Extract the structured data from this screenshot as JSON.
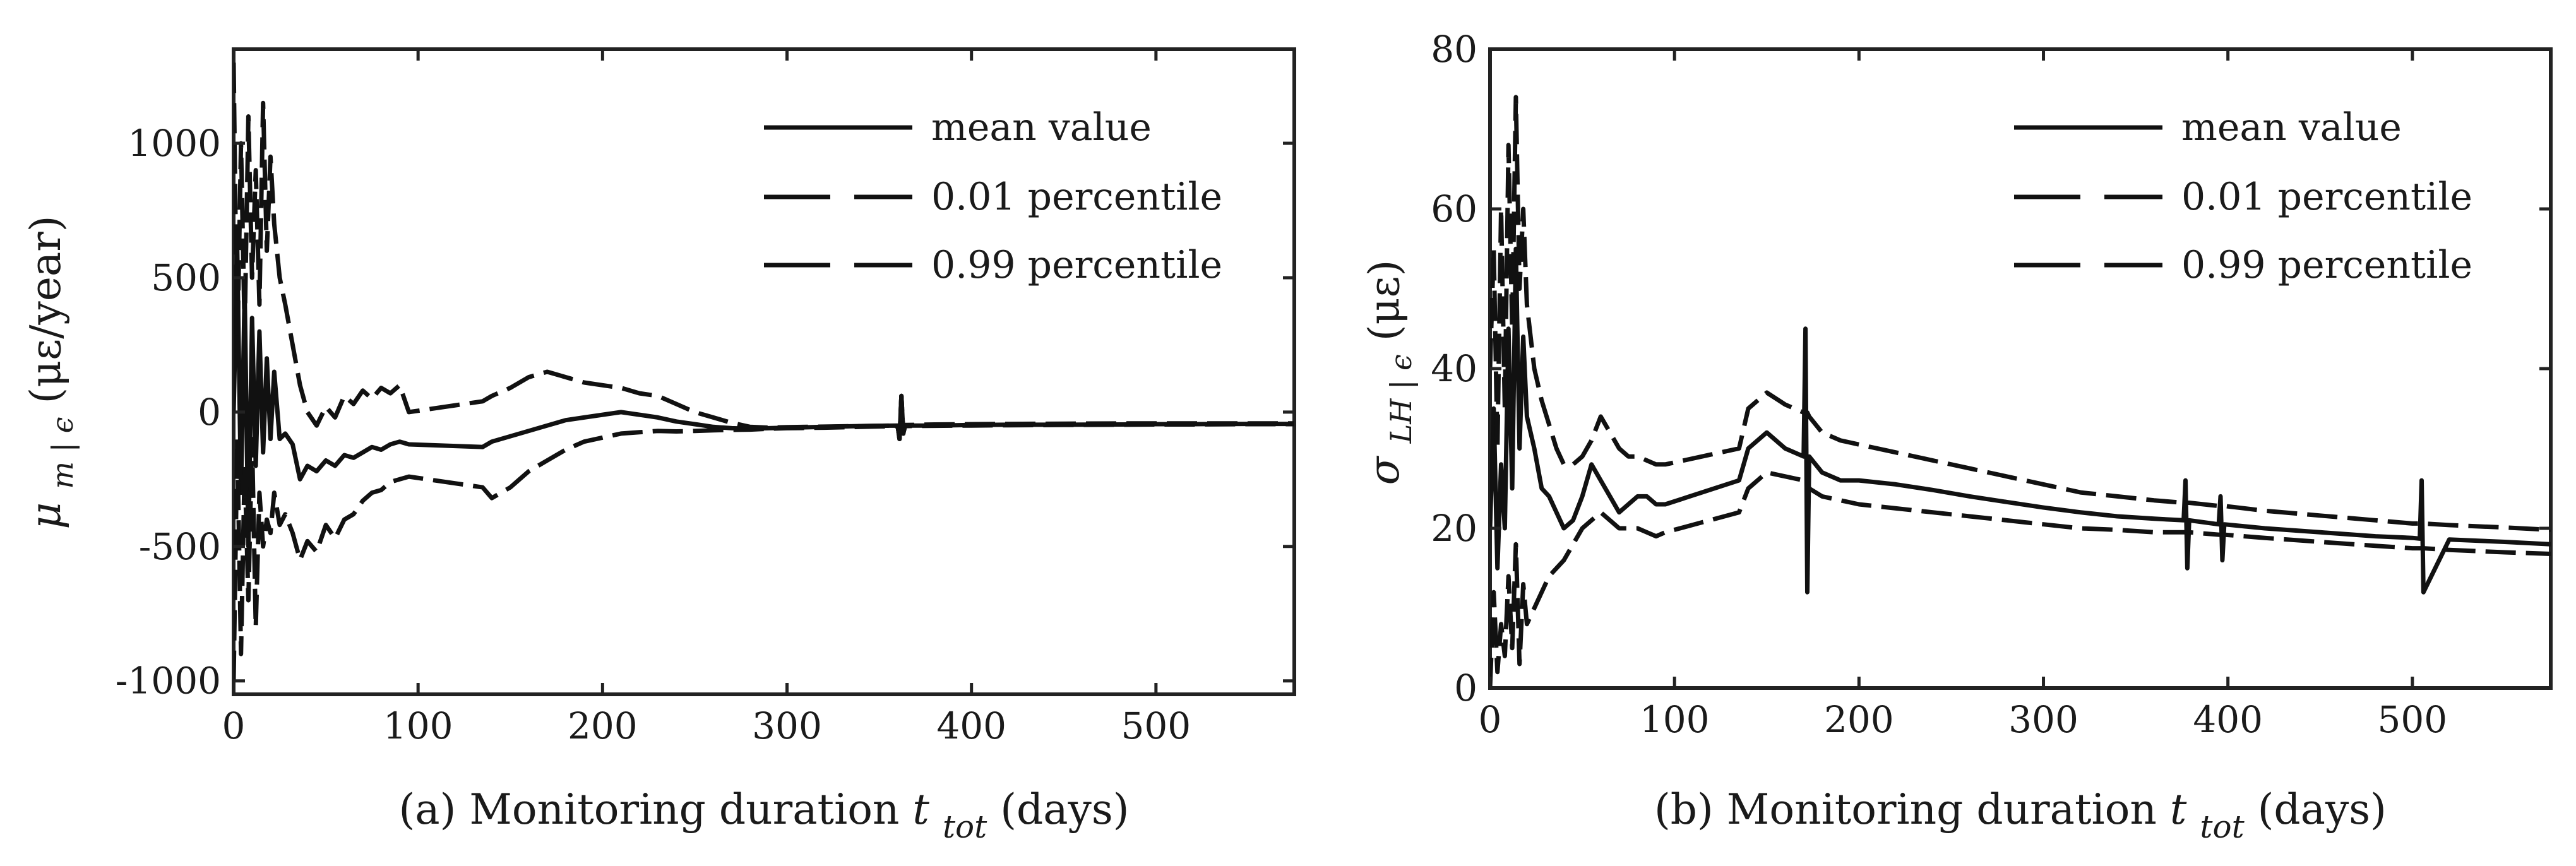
{
  "chart_data": [
    {
      "type": "line",
      "caption": "(a) Monitoring duration",
      "caption_var": "t",
      "caption_sub": "tot",
      "caption_units": "(days)",
      "ylabel_symbol": "μ",
      "ylabel_sub": "m | ϵ",
      "ylabel_units": "(με/year)",
      "xlim": [
        0,
        575
      ],
      "ylim": [
        -1050,
        1350
      ],
      "xticks": [
        0,
        100,
        200,
        300,
        400,
        500
      ],
      "xtick_labels": [
        "0",
        "100",
        "200",
        "300",
        "400",
        "500"
      ],
      "yticks": [
        -1000,
        -500,
        0,
        500,
        1000
      ],
      "ytick_labels": [
        "-1000",
        "-500",
        "0",
        "500",
        "1000"
      ],
      "legend": [
        "mean value",
        "0.01 percentile",
        "0.99 percentile"
      ],
      "series": [
        {
          "name": "mean value",
          "style": "solid",
          "x": [
            0,
            2,
            4,
            6,
            8,
            10,
            12,
            14,
            16,
            18,
            20,
            22,
            25,
            28,
            32,
            36,
            40,
            45,
            50,
            55,
            60,
            65,
            70,
            75,
            80,
            85,
            90,
            95,
            135,
            140,
            150,
            160,
            170,
            180,
            190,
            200,
            210,
            220,
            230,
            240,
            250,
            260,
            270,
            280,
            290,
            300,
            320,
            340,
            360,
            361,
            362,
            363,
            364,
            365,
            380,
            400,
            420,
            450,
            480,
            500,
            520,
            550,
            575
          ],
          "y": [
            0,
            600,
            -300,
            450,
            -500,
            350,
            -200,
            300,
            -150,
            200,
            -100,
            150,
            -100,
            -80,
            -120,
            -250,
            -200,
            -220,
            -180,
            -200,
            -160,
            -170,
            -150,
            -130,
            -140,
            -120,
            -110,
            -120,
            -130,
            -110,
            -90,
            -70,
            -50,
            -30,
            -20,
            -10,
            0,
            -10,
            -20,
            -35,
            -45,
            -55,
            -60,
            -62,
            -60,
            -58,
            -55,
            -52,
            -50,
            -100,
            60,
            -80,
            -50,
            -50,
            -50,
            -48,
            -47,
            -47,
            -46,
            -45,
            -45,
            -44,
            -44
          ]
        },
        {
          "name": "0.01 percentile",
          "style": "dashed",
          "x": [
            0,
            2,
            4,
            6,
            8,
            10,
            12,
            14,
            16,
            18,
            20,
            22,
            25,
            28,
            32,
            36,
            40,
            45,
            50,
            55,
            60,
            65,
            70,
            75,
            80,
            85,
            90,
            95,
            135,
            140,
            150,
            160,
            170,
            180,
            190,
            200,
            210,
            220,
            230,
            240,
            250,
            260,
            270,
            280,
            290,
            300,
            320,
            340,
            360,
            361,
            362,
            363,
            364,
            365,
            380,
            400,
            420,
            450,
            480,
            500,
            520,
            550,
            575
          ],
          "y": [
            -1000,
            -100,
            -900,
            -200,
            -700,
            -100,
            -800,
            -300,
            -500,
            -400,
            -450,
            -300,
            -420,
            -380,
            -450,
            -550,
            -480,
            -520,
            -420,
            -470,
            -400,
            -380,
            -330,
            -300,
            -290,
            -260,
            -250,
            -240,
            -280,
            -320,
            -280,
            -220,
            -180,
            -140,
            -110,
            -95,
            -80,
            -75,
            -70,
            -72,
            -70,
            -68,
            -66,
            -65,
            -62,
            -60,
            -58,
            -55,
            -52,
            -100,
            60,
            -80,
            -52,
            -52,
            -51,
            -50,
            -49,
            -48,
            -47,
            -46,
            -46,
            -45,
            -45
          ]
        },
        {
          "name": "0.99 percentile",
          "style": "dashed",
          "x": [
            0,
            2,
            4,
            6,
            8,
            10,
            12,
            14,
            16,
            18,
            20,
            22,
            25,
            28,
            32,
            36,
            40,
            45,
            50,
            55,
            60,
            65,
            70,
            75,
            80,
            85,
            90,
            95,
            135,
            140,
            150,
            160,
            170,
            180,
            190,
            200,
            210,
            220,
            230,
            240,
            250,
            260,
            270,
            280,
            290,
            300,
            320,
            340,
            360,
            361,
            362,
            363,
            364,
            365,
            380,
            400,
            420,
            450,
            480,
            500,
            520,
            550,
            575
          ],
          "y": [
            1300,
            200,
            1000,
            300,
            1100,
            500,
            900,
            400,
            1150,
            600,
            950,
            700,
            500,
            400,
            250,
            100,
            0,
            -50,
            20,
            -20,
            60,
            30,
            80,
            50,
            90,
            70,
            100,
            0,
            40,
            60,
            90,
            130,
            150,
            130,
            110,
            100,
            90,
            70,
            60,
            30,
            0,
            -20,
            -40,
            -55,
            -58,
            -56,
            -54,
            -52,
            -50,
            -100,
            60,
            -80,
            -48,
            -48,
            -46,
            -45,
            -44,
            -43,
            -42,
            -42,
            -42,
            -42,
            -42
          ]
        }
      ]
    },
    {
      "type": "line",
      "caption": "(b) Monitoring duration",
      "caption_var": "t",
      "caption_sub": "tot",
      "caption_units": "(days)",
      "ylabel_symbol": "σ",
      "ylabel_sub": "LH | ϵ",
      "ylabel_units": "(με)",
      "xlim": [
        0,
        575
      ],
      "ylim": [
        0,
        80
      ],
      "xticks": [
        0,
        100,
        200,
        300,
        400,
        500
      ],
      "xtick_labels": [
        "0",
        "100",
        "200",
        "300",
        "400",
        "500"
      ],
      "yticks": [
        0,
        20,
        40,
        60,
        80
      ],
      "ytick_labels": [
        "0",
        "20",
        "40",
        "60",
        "80"
      ],
      "legend": [
        "mean value",
        "0.01 percentile",
        "0.99 percentile"
      ],
      "series": [
        {
          "name": "mean value",
          "style": "solid",
          "x": [
            0,
            2,
            4,
            6,
            8,
            10,
            12,
            14,
            16,
            18,
            20,
            24,
            28,
            32,
            36,
            40,
            45,
            50,
            55,
            60,
            65,
            70,
            75,
            80,
            85,
            90,
            95,
            135,
            140,
            150,
            160,
            170,
            171,
            172,
            173,
            180,
            190,
            200,
            220,
            240,
            260,
            280,
            300,
            320,
            340,
            360,
            376,
            377,
            378,
            379,
            395,
            396,
            397,
            398,
            420,
            450,
            480,
            500,
            504,
            505,
            506,
            520,
            550,
            575
          ],
          "y": [
            20,
            35,
            15,
            28,
            20,
            45,
            25,
            55,
            30,
            44,
            34,
            30,
            25,
            24,
            22,
            20,
            21,
            24,
            28,
            26,
            24,
            22,
            23,
            24,
            24,
            23,
            23,
            26,
            30,
            32,
            30,
            29,
            45,
            12,
            29,
            27,
            26,
            26,
            25.5,
            24.8,
            24,
            23.3,
            22.6,
            22,
            21.5,
            21.2,
            21,
            26,
            15,
            21,
            20.5,
            24,
            16,
            20.5,
            20,
            19.5,
            19,
            18.8,
            18.7,
            26,
            12,
            18.6,
            18.3,
            18
          ]
        },
        {
          "name": "0.01 percentile",
          "style": "dashed",
          "x": [
            0,
            2,
            4,
            6,
            8,
            10,
            12,
            14,
            16,
            18,
            20,
            24,
            28,
            32,
            36,
            40,
            45,
            50,
            55,
            60,
            65,
            70,
            75,
            80,
            85,
            90,
            95,
            135,
            140,
            150,
            160,
            170,
            171,
            172,
            173,
            180,
            190,
            200,
            220,
            240,
            260,
            280,
            300,
            320,
            340,
            360,
            376,
            377,
            378,
            379,
            395,
            396,
            397,
            398,
            420,
            450,
            480,
            500,
            504,
            505,
            506,
            520,
            550,
            575
          ],
          "y": [
            0,
            12,
            2,
            8,
            4,
            14,
            5,
            18,
            3,
            13,
            8,
            10,
            12,
            14,
            15,
            16,
            18,
            20,
            21,
            22,
            21,
            20,
            20,
            20,
            19.5,
            19,
            19.5,
            22,
            25,
            27,
            26.5,
            26,
            26,
            26,
            25,
            24,
            23.5,
            23,
            22.5,
            22,
            21.5,
            21,
            20.5,
            20,
            19.8,
            19.5,
            19.5,
            19.5,
            19.5,
            19.5,
            19.2,
            19.2,
            19.2,
            19.2,
            18.8,
            18.3,
            17.8,
            17.5,
            17.5,
            17.5,
            17.5,
            17.3,
            17,
            16.8
          ]
        },
        {
          "name": "0.99 percentile",
          "style": "dashed",
          "x": [
            0,
            2,
            4,
            6,
            8,
            10,
            12,
            14,
            16,
            18,
            20,
            24,
            28,
            32,
            36,
            40,
            45,
            50,
            55,
            60,
            65,
            70,
            75,
            80,
            85,
            90,
            95,
            135,
            140,
            150,
            160,
            170,
            171,
            172,
            173,
            180,
            190,
            200,
            220,
            240,
            260,
            280,
            300,
            320,
            340,
            360,
            376,
            377,
            378,
            379,
            395,
            396,
            397,
            398,
            420,
            450,
            480,
            500,
            504,
            505,
            506,
            520,
            550,
            575
          ],
          "y": [
            40,
            55,
            30,
            60,
            35,
            68,
            45,
            74,
            50,
            60,
            48,
            40,
            36,
            33,
            30,
            28,
            28,
            29,
            31,
            34,
            32,
            30,
            29,
            29,
            28.5,
            28,
            28,
            30,
            35,
            37,
            35.5,
            34.5,
            34.5,
            34.5,
            34,
            32,
            31,
            30.5,
            29.5,
            28.5,
            27.5,
            26.5,
            25.5,
            24.5,
            24,
            23.5,
            23.2,
            23.2,
            23.2,
            23.2,
            22.8,
            22.8,
            22.8,
            22.8,
            22.2,
            21.6,
            21,
            20.6,
            20.6,
            20.6,
            20.6,
            20.4,
            20.1,
            19.8
          ]
        }
      ]
    }
  ]
}
